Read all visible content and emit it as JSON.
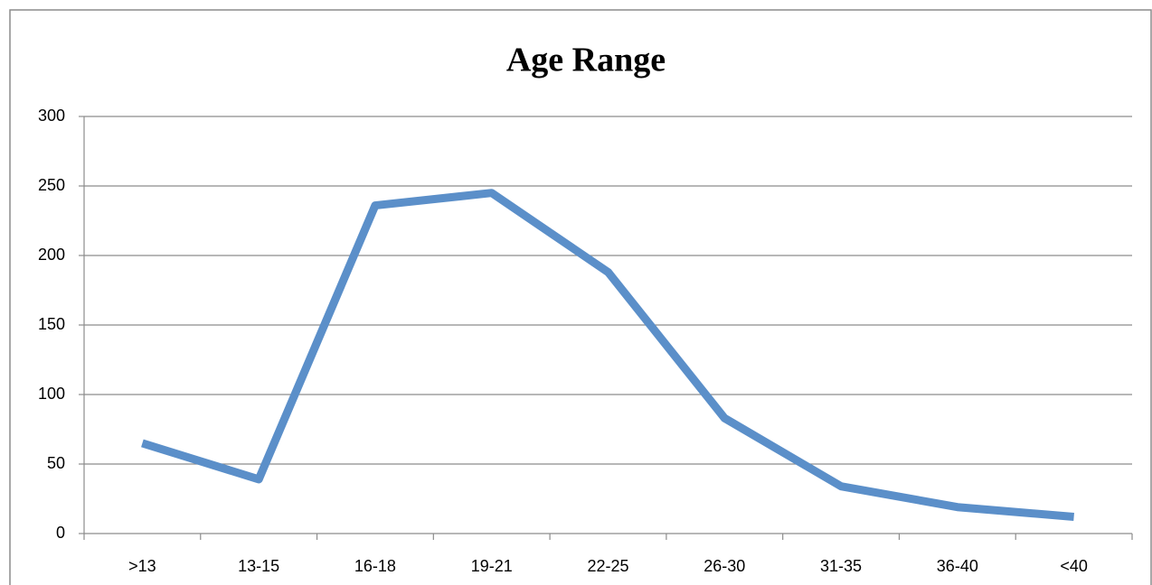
{
  "chart_data": {
    "type": "line",
    "title": "Age Range",
    "categories": [
      ">13",
      "13-15",
      "16-18",
      "19-21",
      "22-25",
      "26-30",
      "31-35",
      "36-40",
      "<40"
    ],
    "series": [
      {
        "name": "Age Range",
        "color": "#5b8fc9",
        "values": [
          65,
          39,
          236,
          245,
          188,
          83,
          34,
          19,
          12
        ]
      }
    ],
    "ylim": [
      0,
      300
    ],
    "yticks": [
      0,
      50,
      100,
      150,
      200,
      250,
      300
    ],
    "grid": true
  }
}
